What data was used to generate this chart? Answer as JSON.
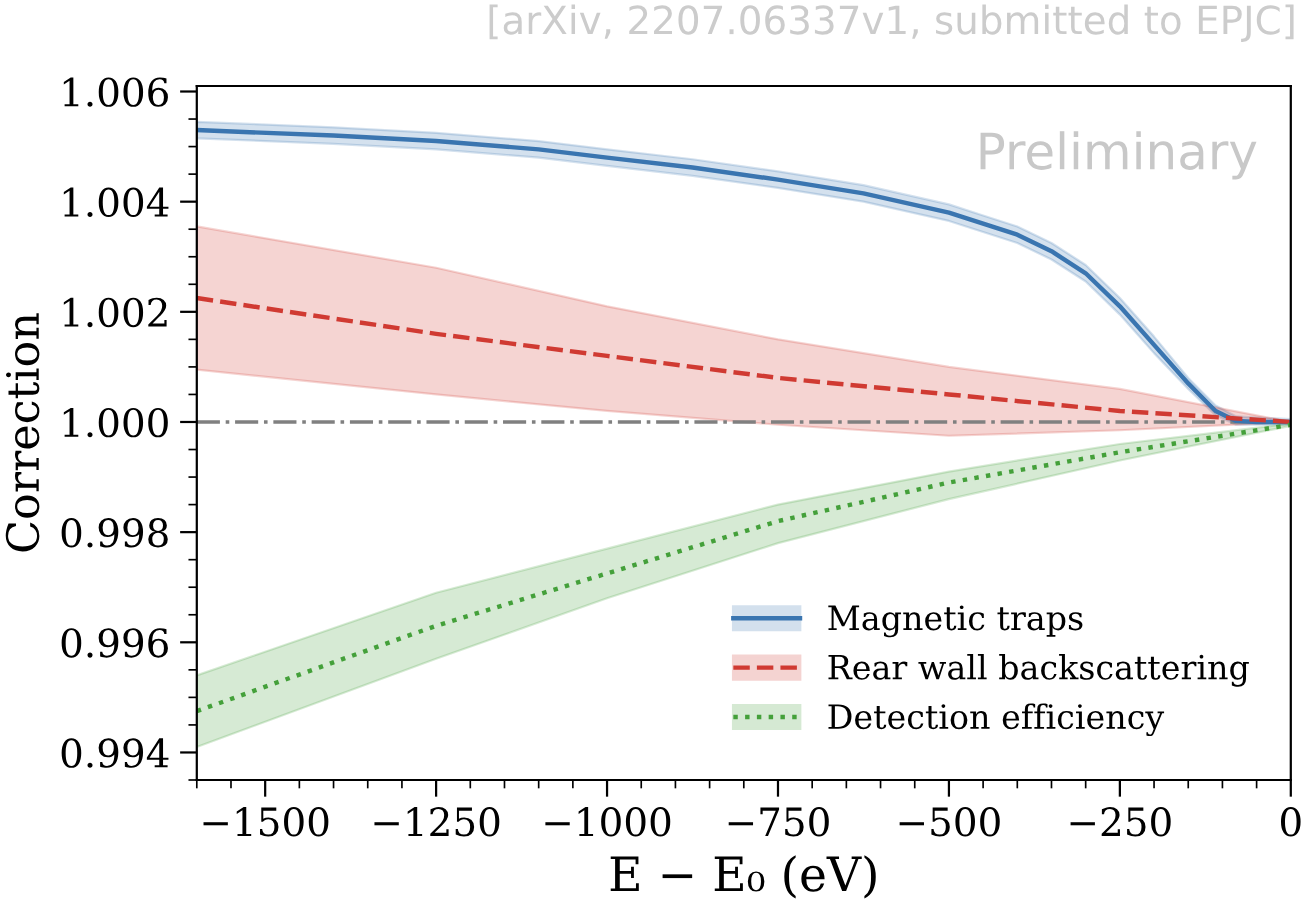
{
  "chart_data": {
    "type": "line",
    "xlabel": "E − E₀ (eV)",
    "ylabel": "Correction",
    "annotations": [
      "[arXiv, 2207.06337v1, submitted to EPJC]",
      "Preliminary"
    ],
    "xlim": [
      -1600,
      0
    ],
    "xticks": [
      -1500,
      -1250,
      -1000,
      -750,
      -500,
      -250,
      0
    ],
    "ylim": [
      0.9935,
      1.0061
    ],
    "yticks": [
      {
        "value": 0.994,
        "label": "0.994"
      },
      {
        "value": 0.996,
        "label": "0.996"
      },
      {
        "value": 0.998,
        "label": "0.998"
      },
      {
        "value": 1.0,
        "label": "1.000"
      },
      {
        "value": 1.002,
        "label": "1.002"
      },
      {
        "value": 1.004,
        "label": "1.004"
      },
      {
        "value": 1.006,
        "label": "1.006"
      }
    ],
    "legend": "bottom right",
    "grid": false,
    "ref_lines": [
      {
        "axis": "y",
        "value": 1.0,
        "color": "#808080",
        "line_style": "dashdot"
      }
    ],
    "series": [
      {
        "name": "Magnetic traps",
        "color": "#3a75b0",
        "line_style": "solid",
        "x": [
          -1600,
          -1400,
          -1250,
          -1100,
          -1000,
          -875,
          -750,
          -625,
          -500,
          -450,
          -400,
          -350,
          -300,
          -250,
          -200,
          -150,
          -110,
          -80,
          -50,
          0
        ],
        "values": [
          1.0053,
          1.0052,
          1.0051,
          1.00495,
          1.0048,
          1.00462,
          1.0044,
          1.00415,
          1.0038,
          1.0036,
          1.0034,
          1.0031,
          1.0027,
          1.0021,
          1.0014,
          1.0007,
          1.0002,
          1.00002,
          1.0,
          1.0
        ],
        "lower": [
          1.00515,
          1.00505,
          1.00495,
          1.0048,
          1.00465,
          1.00447,
          1.00425,
          1.004,
          1.00365,
          1.00345,
          1.00325,
          1.00295,
          1.00255,
          1.00195,
          1.00125,
          1.0006,
          1.00012,
          0.99995,
          0.99995,
          0.99995
        ],
        "upper": [
          1.00545,
          1.00535,
          1.00525,
          1.0051,
          1.00495,
          1.00477,
          1.00455,
          1.0043,
          1.00395,
          1.00375,
          1.00355,
          1.00325,
          1.00285,
          1.00225,
          1.00155,
          1.0008,
          1.0003,
          1.0001,
          1.00008,
          1.00005
        ]
      },
      {
        "name": "Rear wall backscattering",
        "color": "#d03a32",
        "line_style": "dashed",
        "x": [
          -1600,
          -1250,
          -1000,
          -750,
          -500,
          -250,
          0
        ],
        "values": [
          1.00225,
          1.0016,
          1.0012,
          1.0008,
          1.0005,
          1.0002,
          1.0
        ],
        "lower": [
          1.00095,
          1.0005,
          1.0002,
          0.99995,
          0.99975,
          0.99985,
          1.0
        ],
        "upper": [
          1.00355,
          1.0028,
          1.0021,
          1.0015,
          1.001,
          1.0006,
          1.0
        ]
      },
      {
        "name": "Detection efficiency",
        "color": "#44a03a",
        "line_style": "dotted",
        "x": [
          -1600,
          -1250,
          -1000,
          -750,
          -500,
          -250,
          0
        ],
        "values": [
          0.99475,
          0.9963,
          0.99725,
          0.9982,
          0.9989,
          0.99945,
          0.99995
        ],
        "lower": [
          0.9941,
          0.9957,
          0.9968,
          0.9978,
          0.9986,
          0.9993,
          0.99993
        ],
        "upper": [
          0.9954,
          0.9969,
          0.9977,
          0.9985,
          0.9991,
          0.9996,
          0.99997
        ]
      }
    ]
  }
}
